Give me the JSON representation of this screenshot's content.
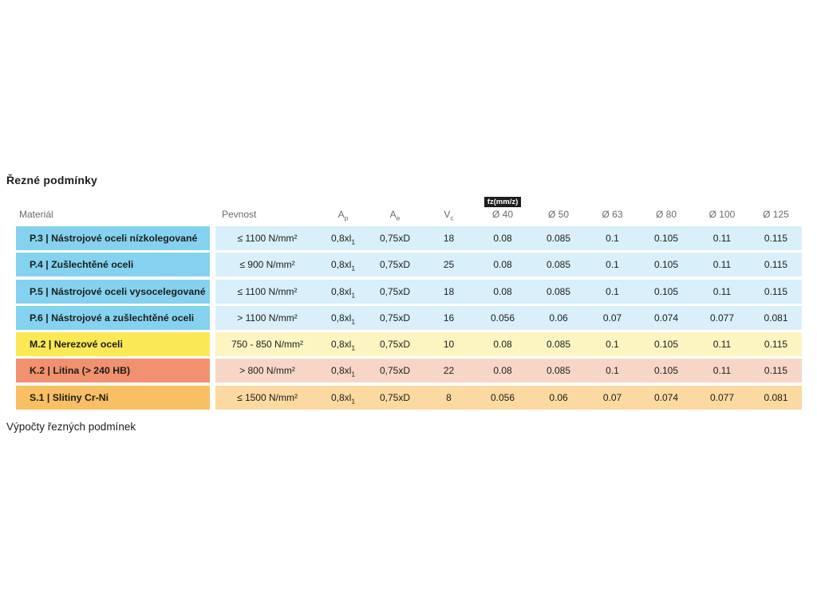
{
  "page": {
    "title": "Řezné podmínky",
    "bottom_heading": "Výpočty řezných podmínek"
  },
  "colors": {
    "steel_material_cell": "#84D2EF",
    "steel_row_band": "#D9EFFA",
    "stainless_material_cell": "#FAE955",
    "stainless_row_band": "#FCF5C2",
    "cast_iron_material_cell": "#F2916F",
    "cast_iron_row_band": "#F8D6C7",
    "superalloy_material_cell": "#F9BF63",
    "superalloy_row_band": "#FBD9A1",
    "fz_badge_background": "#1D1D1B",
    "body_text": "#1D1D1B",
    "header_text": "#6B6B6B"
  },
  "table": {
    "fz_badge_label": "fz(mm/z)",
    "headers": {
      "material": "Materiál",
      "pevnost": "Pevnost",
      "ap": {
        "base": "A",
        "sub": "p"
      },
      "ae": {
        "base": "A",
        "sub": "e"
      },
      "vc": {
        "base": "V",
        "sub": "c"
      },
      "d40": "Ø 40",
      "d50": "Ø 50",
      "d63": "Ø 63",
      "d80": "Ø 80",
      "d100": "Ø 100",
      "d125": "Ø 125"
    },
    "rows": [
      {
        "material": "P.3 | Nástrojové oceli nízkolegované",
        "color_key": "blue",
        "pevnost": "≤ 1100 N/mm²",
        "ap_base": "0,8xl",
        "ap_sub": "1",
        "ae": "0,75xD",
        "vc": "18",
        "fz": [
          "0.08",
          "0.085",
          "0.1",
          "0.105",
          "0.11",
          "0.115"
        ]
      },
      {
        "material": "P.4 | Zušlechtěné oceli",
        "color_key": "blue",
        "pevnost": "≤ 900 N/mm²",
        "ap_base": "0,8xl",
        "ap_sub": "1",
        "ae": "0,75xD",
        "vc": "25",
        "fz": [
          "0.08",
          "0.085",
          "0.1",
          "0.105",
          "0.11",
          "0.115"
        ]
      },
      {
        "material": "P.5 | Nástrojové oceli vysocelegované",
        "color_key": "blue",
        "pevnost": "≤ 1100 N/mm²",
        "ap_base": "0,8xl",
        "ap_sub": "1",
        "ae": "0,75xD",
        "vc": "18",
        "fz": [
          "0.08",
          "0.085",
          "0.1",
          "0.105",
          "0.11",
          "0.115"
        ]
      },
      {
        "material": "P.6 | Nástrojové a zušlechtěné oceli",
        "color_key": "blue",
        "pevnost": "> 1100 N/mm²",
        "ap_base": "0,8xl",
        "ap_sub": "1",
        "ae": "0,75xD",
        "vc": "16",
        "fz": [
          "0.056",
          "0.06",
          "0.07",
          "0.074",
          "0.077",
          "0.081"
        ]
      },
      {
        "material": "M.2 | Nerezové oceli",
        "color_key": "yellow",
        "pevnost": "750 - 850 N/mm²",
        "ap_base": "0,8xl",
        "ap_sub": "1",
        "ae": "0,75xD",
        "vc": "10",
        "fz": [
          "0.08",
          "0.085",
          "0.1",
          "0.105",
          "0.11",
          "0.115"
        ]
      },
      {
        "material": "K.2 | Litina (> 240 HB)",
        "color_key": "salmon",
        "pevnost": "> 800 N/mm²",
        "ap_base": "0,8xl",
        "ap_sub": "1",
        "ae": "0,75xD",
        "vc": "22",
        "fz": [
          "0.08",
          "0.085",
          "0.1",
          "0.105",
          "0.11",
          "0.115"
        ]
      },
      {
        "material": "S.1 | Slitiny Cr-Ni",
        "color_key": "orange",
        "pevnost": "≤ 1500 N/mm²",
        "ap_base": "0,8xl",
        "ap_sub": "1",
        "ae": "0,75xD",
        "vc": "8",
        "fz": [
          "0.056",
          "0.06",
          "0.07",
          "0.074",
          "0.077",
          "0.081"
        ]
      }
    ]
  }
}
